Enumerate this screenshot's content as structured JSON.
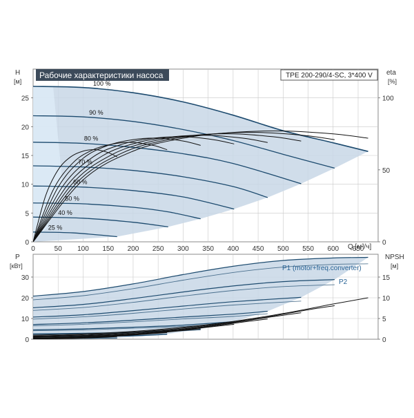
{
  "colors": {
    "envelope": "#c8d7e6",
    "envelope_light": "#dceaf6",
    "curve": "#1c4a6e",
    "efficiency_curve": "#111111",
    "grid": "#c8c8c8",
    "title_bg": "#3c4a5a",
    "curve_label": "#2a6496"
  },
  "chart_data": [
    {
      "id": "head",
      "type": "line",
      "title": "Рабочие характеристики насоса",
      "model": "TPE 200-290/4-SC, 3*400 V",
      "xlabel": "Q [м³/ч]",
      "ylabel": "H",
      "ylabel_unit": "[м]",
      "y2label": "eta",
      "y2label_unit": "[%]",
      "xlim": [
        0,
        690
      ],
      "ylim": [
        0,
        30
      ],
      "y2lim": [
        0,
        120
      ],
      "grid": true,
      "x_ticks": [
        0,
        50,
        100,
        150,
        200,
        250,
        300,
        350,
        400,
        450,
        500,
        550,
        600,
        650
      ],
      "y_ticks": [
        0,
        5,
        10,
        15,
        20,
        25
      ],
      "y2_ticks": [
        0,
        50,
        100
      ],
      "speed_labels": [
        "100 %",
        "90 %",
        "80 %",
        "70 %",
        "60 %",
        "50 %",
        "40 %",
        "25 %"
      ],
      "speed_fractions": [
        1.0,
        0.9,
        0.8,
        0.7,
        0.6,
        0.5,
        0.4,
        0.25
      ],
      "envelope_max_speed": {
        "q": [
          0,
          100,
          200,
          300,
          400,
          500,
          600,
          670
        ],
        "h": [
          27,
          26.8,
          25.9,
          24.3,
          22.0,
          19.3,
          17.2,
          15.7
        ]
      },
      "series": [
        {
          "speed": 1.0,
          "q": [
            0,
            100,
            200,
            300,
            400,
            500,
            600,
            670
          ],
          "h": [
            27,
            26.8,
            25.9,
            24.3,
            22.0,
            19.3,
            17.2,
            15.7
          ]
        },
        {
          "speed": 0.9,
          "q": [
            0,
            100,
            200,
            300,
            400,
            500,
            603
          ],
          "h": [
            21.9,
            21.7,
            20.9,
            19.5,
            17.6,
            15.2,
            12.8
          ]
        },
        {
          "speed": 0.8,
          "q": [
            0,
            100,
            200,
            300,
            400,
            536
          ],
          "h": [
            17.3,
            17.1,
            16.4,
            15.3,
            13.6,
            10.1
          ]
        },
        {
          "speed": 0.7,
          "q": [
            0,
            100,
            200,
            300,
            400,
            469
          ],
          "h": [
            13.2,
            13.0,
            12.4,
            11.3,
            9.6,
            7.7
          ]
        },
        {
          "speed": 0.6,
          "q": [
            0,
            100,
            200,
            300,
            402
          ],
          "h": [
            9.7,
            9.5,
            8.9,
            7.8,
            5.7
          ]
        },
        {
          "speed": 0.5,
          "q": [
            0,
            100,
            200,
            270,
            335
          ],
          "h": [
            6.75,
            6.6,
            6.0,
            5.2,
            4.0
          ]
        },
        {
          "speed": 0.4,
          "q": [
            0,
            100,
            200,
            270
          ],
          "h": [
            4.3,
            4.1,
            3.4,
            2.6
          ]
        },
        {
          "speed": 0.25,
          "q": [
            0,
            80,
            168
          ],
          "h": [
            1.7,
            1.55,
            0.9
          ]
        }
      ],
      "efficiency_series": [
        {
          "speed": 1.0,
          "q": [
            0,
            100,
            200,
            300,
            400,
            500,
            600,
            670
          ],
          "eta": [
            0,
            43,
            63,
            72,
            76,
            77,
            75,
            72
          ]
        },
        {
          "speed": 0.9,
          "q": [
            0,
            90,
            180,
            270,
            360,
            450,
            540,
            603
          ],
          "eta": [
            0,
            42,
            62,
            71,
            75,
            76,
            74,
            71
          ]
        },
        {
          "speed": 0.8,
          "q": [
            0,
            80,
            160,
            240,
            320,
            400,
            480,
            536
          ],
          "eta": [
            0,
            41,
            61,
            70,
            74,
            75,
            73,
            70
          ]
        },
        {
          "speed": 0.7,
          "q": [
            0,
            70,
            140,
            210,
            280,
            350,
            420,
            469
          ],
          "eta": [
            0,
            40,
            60,
            69,
            73,
            74,
            72,
            69
          ]
        },
        {
          "speed": 0.6,
          "q": [
            0,
            60,
            120,
            180,
            240,
            300,
            360,
            402
          ],
          "eta": [
            0,
            39,
            59,
            68,
            72,
            73,
            71,
            68
          ]
        },
        {
          "speed": 0.5,
          "q": [
            0,
            50,
            100,
            150,
            200,
            250,
            300,
            335
          ],
          "eta": [
            0,
            38,
            58,
            67,
            71,
            72,
            70,
            67
          ]
        },
        {
          "speed": 0.4,
          "q": [
            0,
            40,
            80,
            120,
            160,
            200,
            240,
            268
          ],
          "eta": [
            0,
            36,
            55,
            64,
            68,
            69,
            67,
            64
          ]
        },
        {
          "speed": 0.25,
          "q": [
            0,
            25,
            50,
            75,
            100,
            125,
            150,
            168
          ],
          "eta": [
            0,
            32,
            50,
            59,
            63,
            64,
            62,
            59
          ]
        }
      ]
    },
    {
      "id": "power",
      "type": "line",
      "ylabel": "P",
      "ylabel_unit": "[кВт]",
      "y2label": "NPSH",
      "y2label_unit": "[м]",
      "xlim": [
        0,
        690
      ],
      "ylim": [
        0,
        41
      ],
      "y2lim": [
        0,
        20.5
      ],
      "grid": true,
      "y_ticks": [
        0,
        10,
        20,
        30
      ],
      "y2_ticks": [
        0,
        5,
        10,
        15
      ],
      "legend": [
        {
          "label": "P1 (motor+freq.converter)"
        },
        {
          "label": "P2"
        }
      ],
      "series": [
        {
          "name": "P1",
          "speed": 1.0,
          "q": [
            0,
            100,
            200,
            300,
            400,
            500,
            600,
            670
          ],
          "p": [
            20.8,
            23,
            26.7,
            31.2,
            35.2,
            38.0,
            39.2,
            39.5
          ]
        },
        {
          "name": "P2",
          "speed": 1.0,
          "q": [
            0,
            100,
            200,
            300,
            400,
            500,
            600,
            670
          ],
          "p": [
            19.0,
            21.0,
            24.4,
            28.5,
            32.2,
            34.8,
            36.1,
            36.4
          ]
        },
        {
          "name": "P1",
          "speed": 0.9,
          "q": [
            0,
            100,
            200,
            300,
            400,
            500,
            603
          ],
          "p": [
            15.2,
            16.8,
            19.6,
            22.8,
            25.7,
            27.8,
            28.8
          ]
        },
        {
          "name": "P2",
          "speed": 0.9,
          "q": [
            0,
            100,
            200,
            300,
            400,
            500,
            603
          ],
          "p": [
            13.9,
            15.3,
            17.8,
            20.8,
            23.5,
            25.4,
            26.3
          ]
        },
        {
          "name": "P1",
          "speed": 0.8,
          "q": [
            0,
            100,
            200,
            300,
            400,
            536
          ],
          "p": [
            10.7,
            11.8,
            13.8,
            16.0,
            18.1,
            20.2
          ]
        },
        {
          "name": "P2",
          "speed": 0.8,
          "q": [
            0,
            100,
            200,
            300,
            400,
            536
          ],
          "p": [
            9.7,
            10.8,
            12.5,
            14.6,
            16.5,
            18.4
          ]
        },
        {
          "name": "P1",
          "speed": 0.7,
          "q": [
            0,
            100,
            200,
            300,
            400,
            469
          ],
          "p": [
            7.1,
            7.9,
            9.2,
            10.7,
            12.1,
            13.5
          ]
        },
        {
          "name": "P2",
          "speed": 0.7,
          "q": [
            0,
            100,
            200,
            300,
            400,
            469
          ],
          "p": [
            6.5,
            7.2,
            8.4,
            9.8,
            11.0,
            12.3
          ]
        },
        {
          "name": "P1",
          "speed": 0.6,
          "q": [
            0,
            100,
            200,
            300,
            402
          ],
          "p": [
            4.5,
            5.0,
            5.8,
            6.8,
            8.5
          ]
        },
        {
          "name": "P2",
          "speed": 0.6,
          "q": [
            0,
            100,
            200,
            300,
            402
          ],
          "p": [
            4.1,
            4.5,
            5.3,
            6.2,
            7.8
          ]
        },
        {
          "name": "P1",
          "speed": 0.5,
          "q": [
            0,
            100,
            200,
            335
          ],
          "p": [
            2.6,
            2.9,
            3.4,
            4.9
          ]
        },
        {
          "name": "P2",
          "speed": 0.5,
          "q": [
            0,
            100,
            200,
            335
          ],
          "p": [
            2.4,
            2.6,
            3.1,
            4.5
          ]
        },
        {
          "name": "P1",
          "speed": 0.4,
          "q": [
            0,
            100,
            200,
            268
          ],
          "p": [
            1.3,
            1.5,
            1.7,
            2.5
          ]
        },
        {
          "name": "P2",
          "speed": 0.4,
          "q": [
            0,
            100,
            200,
            268
          ],
          "p": [
            1.2,
            1.35,
            1.55,
            2.3
          ]
        },
        {
          "name": "P1",
          "speed": 0.25,
          "q": [
            0,
            80,
            168
          ],
          "p": [
            0.4,
            0.45,
            0.6
          ]
        },
        {
          "name": "P2",
          "speed": 0.25,
          "q": [
            0,
            80,
            168
          ],
          "p": [
            0.35,
            0.4,
            0.55
          ]
        }
      ],
      "npsh_series": [
        {
          "speed": 1.0,
          "q": [
            0,
            100,
            200,
            300,
            400,
            500,
            600,
            670
          ],
          "npsh": [
            1.0,
            1.3,
            1.9,
            2.9,
            4.3,
            6.2,
            8.5,
            10.0
          ]
        },
        {
          "speed": 0.9,
          "q": [
            0,
            90,
            180,
            270,
            360,
            450,
            540,
            603
          ],
          "npsh": [
            0.8,
            1.05,
            1.55,
            2.35,
            3.5,
            5.0,
            6.9,
            8.1
          ]
        },
        {
          "speed": 0.8,
          "q": [
            0,
            80,
            160,
            240,
            320,
            400,
            480,
            536
          ],
          "npsh": [
            0.65,
            0.85,
            1.2,
            1.85,
            2.75,
            4.0,
            5.45,
            6.4
          ]
        },
        {
          "speed": 0.7,
          "q": [
            0,
            70,
            140,
            210,
            280,
            350,
            420,
            469
          ],
          "npsh": [
            0.5,
            0.65,
            0.95,
            1.4,
            2.1,
            3.05,
            4.15,
            4.9
          ]
        },
        {
          "speed": 0.6,
          "q": [
            0,
            60,
            120,
            180,
            240,
            300,
            360,
            402
          ],
          "npsh": [
            0.35,
            0.45,
            0.7,
            1.05,
            1.55,
            2.25,
            3.05,
            3.6
          ]
        },
        {
          "speed": 0.5,
          "q": [
            0,
            50,
            100,
            150,
            200,
            250,
            300,
            335
          ],
          "npsh": [
            0.25,
            0.33,
            0.48,
            0.73,
            1.08,
            1.55,
            2.1,
            2.5
          ]
        },
        {
          "speed": 0.4,
          "q": [
            0,
            40,
            80,
            120,
            160,
            200,
            240,
            268
          ],
          "npsh": [
            0.16,
            0.21,
            0.3,
            0.46,
            0.69,
            1.0,
            1.36,
            1.6
          ]
        },
        {
          "speed": 0.25,
          "q": [
            0,
            25,
            50,
            75,
            100,
            125,
            150,
            168
          ],
          "npsh": [
            0.06,
            0.08,
            0.12,
            0.18,
            0.27,
            0.39,
            0.53,
            0.63
          ]
        }
      ]
    }
  ]
}
